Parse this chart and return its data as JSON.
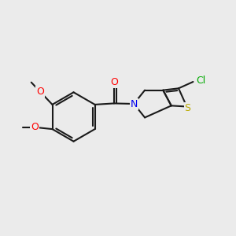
{
  "background_color": "#ebebeb",
  "bond_color": "#1a1a1a",
  "atom_colors": {
    "O": "#ff0000",
    "N": "#0000ee",
    "S": "#bbaa00",
    "Cl": "#00aa00",
    "C": "#1a1a1a"
  },
  "font_size": 8.5,
  "figsize": [
    3.0,
    3.0
  ],
  "dpi": 100
}
